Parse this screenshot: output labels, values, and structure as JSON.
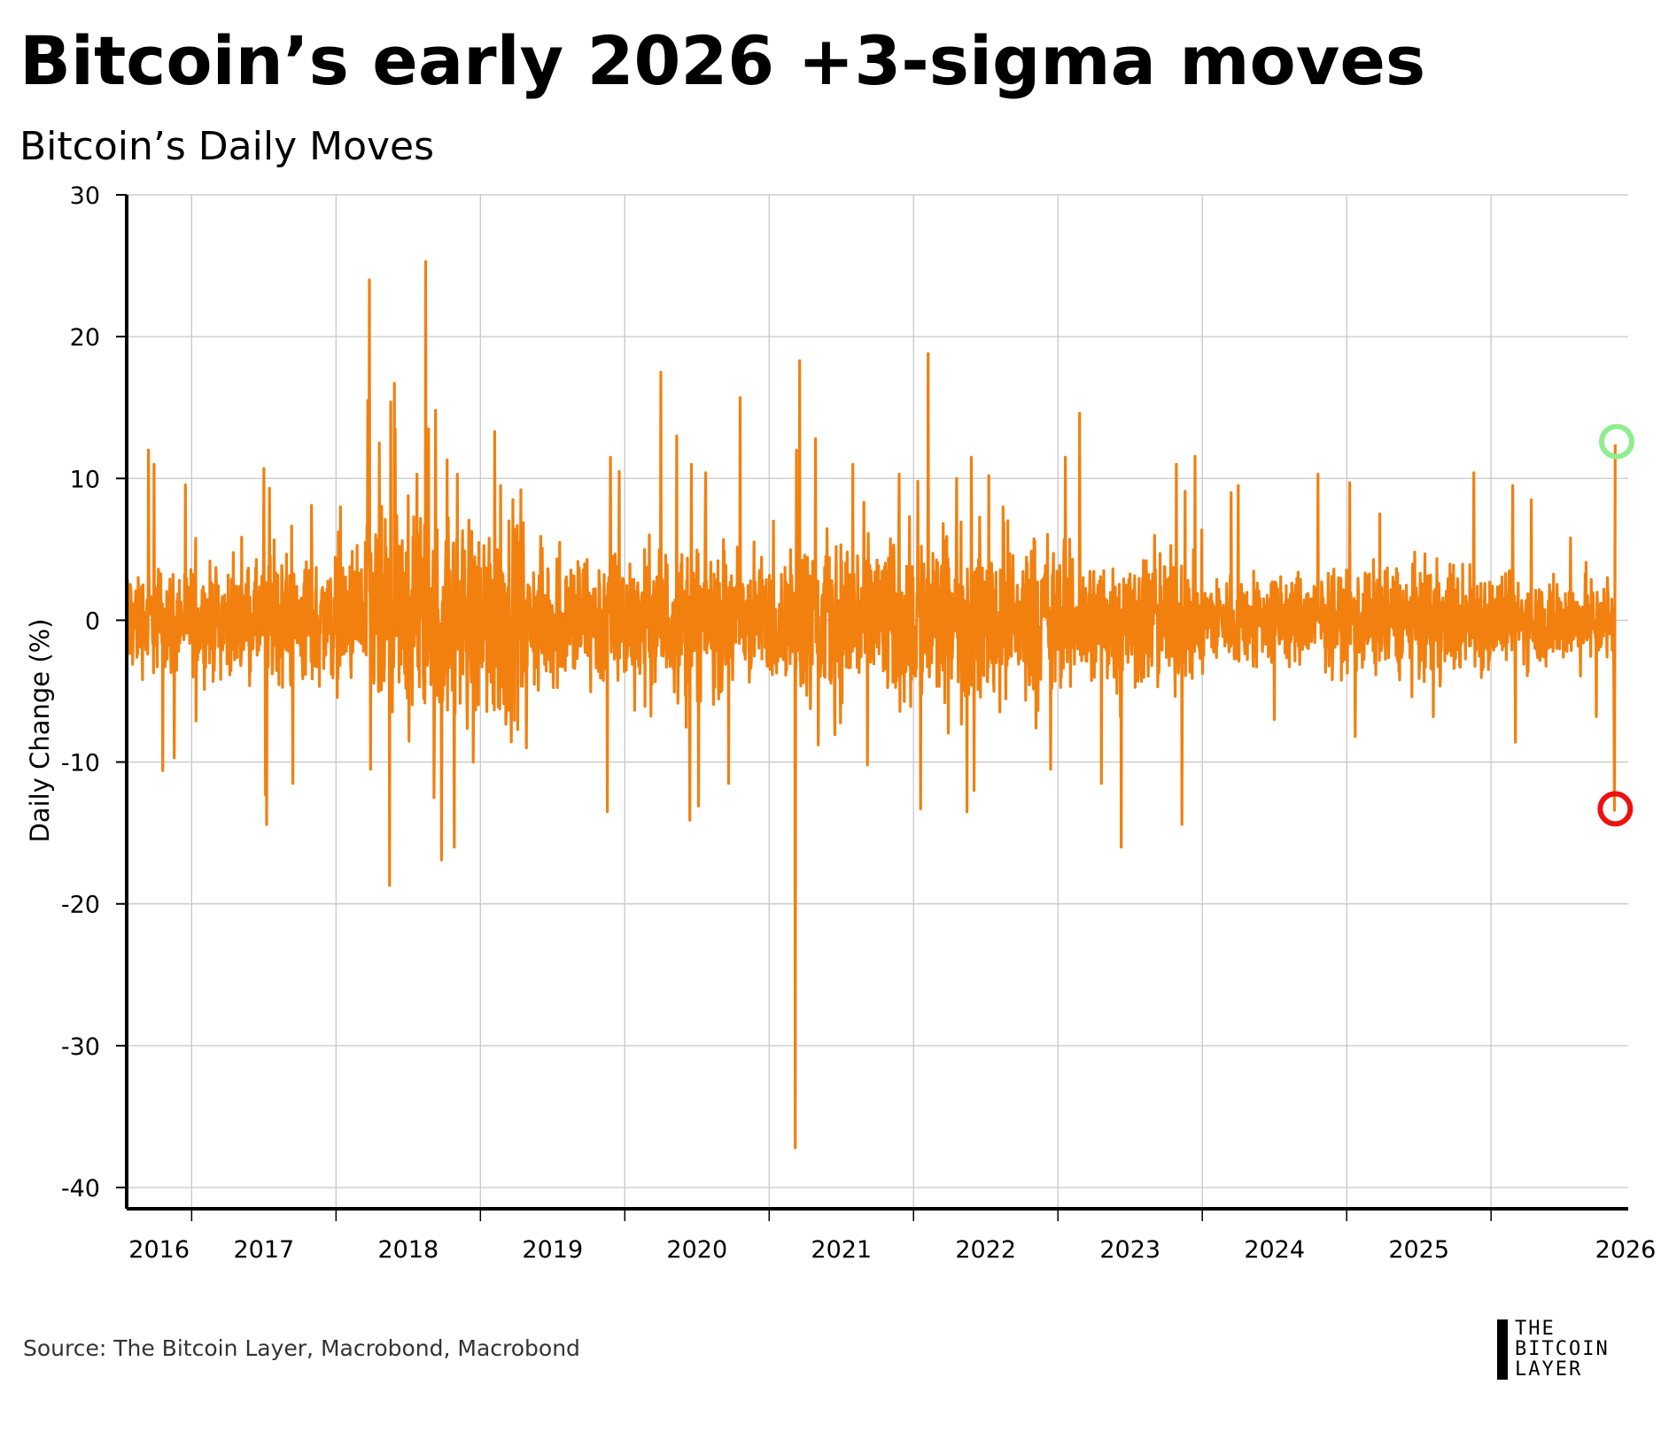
{
  "header": {
    "title": "Bitcoin’s early 2026 +3-sigma moves",
    "subtitle": "Bitcoin’s Daily Moves"
  },
  "footer": {
    "source": "Source: The Bitcoin Layer, Macrobond, Macrobond",
    "logo_lines": [
      "THE",
      "BITCOIN",
      "LAYER"
    ]
  },
  "colors": {
    "series": "#F2800F",
    "grid": "#C8C8C8",
    "axis": "#000000",
    "marker_up": "#90EE90",
    "marker_down": "#EE1111"
  },
  "chart_data": {
    "type": "line",
    "title": "Bitcoin’s Daily Moves",
    "xlabel": "",
    "ylabel": "Daily Change (%)",
    "ylim": [
      -41.5,
      30
    ],
    "yticks": [
      30,
      20,
      10,
      0,
      -10,
      -20,
      -30,
      -40
    ],
    "xlim": [
      2015.55,
      2025.95
    ],
    "xtick_labels": [
      "2016",
      "2017",
      "2018",
      "2019",
      "2020",
      "2021",
      "2022",
      "2023",
      "2024",
      "2025",
      "2026"
    ],
    "grid": true,
    "series": [
      {
        "name": "Bitcoin daily change (%)",
        "spikes": [
          {
            "x": 2015.7,
            "y": 12.0
          },
          {
            "x": 2015.74,
            "y": 11.0
          },
          {
            "x": 2015.8,
            "y": -10.6
          },
          {
            "x": 2015.88,
            "y": -9.7
          },
          {
            "x": 2016.03,
            "y": -7.1
          },
          {
            "x": 2016.5,
            "y": 10.7
          },
          {
            "x": 2016.51,
            "y": -12.3
          },
          {
            "x": 2016.52,
            "y": -14.4
          },
          {
            "x": 2016.54,
            "y": 9.3
          },
          {
            "x": 2016.7,
            "y": -11.5
          },
          {
            "x": 2016.83,
            "y": 8.1
          },
          {
            "x": 2017.03,
            "y": 8.0
          },
          {
            "x": 2017.22,
            "y": 15.5
          },
          {
            "x": 2017.23,
            "y": 24.0
          },
          {
            "x": 2017.24,
            "y": -10.5
          },
          {
            "x": 2017.3,
            "y": 12.5
          },
          {
            "x": 2017.38,
            "y": 15.4
          },
          {
            "x": 2017.37,
            "y": -18.7
          },
          {
            "x": 2017.41,
            "y": 13.5
          },
          {
            "x": 2017.56,
            "y": 10.3
          },
          {
            "x": 2017.62,
            "y": 25.3
          },
          {
            "x": 2017.64,
            "y": 13.5
          },
          {
            "x": 2017.69,
            "y": 14.8
          },
          {
            "x": 2017.68,
            "y": -12.5
          },
          {
            "x": 2017.73,
            "y": -16.9
          },
          {
            "x": 2017.77,
            "y": 11.3
          },
          {
            "x": 2017.82,
            "y": -16.0
          },
          {
            "x": 2017.84,
            "y": 10.3
          },
          {
            "x": 2017.95,
            "y": -10.0
          },
          {
            "x": 2018.1,
            "y": 13.3
          },
          {
            "x": 2018.14,
            "y": 9.5
          },
          {
            "x": 2018.28,
            "y": 9.2
          },
          {
            "x": 2018.32,
            "y": -9.0
          },
          {
            "x": 2018.55,
            "y": 5.5
          },
          {
            "x": 2018.88,
            "y": -13.5
          },
          {
            "x": 2018.9,
            "y": 11.5
          },
          {
            "x": 2018.96,
            "y": 10.5
          },
          {
            "x": 2019.25,
            "y": 17.5
          },
          {
            "x": 2019.36,
            "y": 13.0
          },
          {
            "x": 2019.45,
            "y": -14.1
          },
          {
            "x": 2019.46,
            "y": 11.0
          },
          {
            "x": 2019.51,
            "y": -13.1
          },
          {
            "x": 2019.56,
            "y": 10.4
          },
          {
            "x": 2019.72,
            "y": -11.5
          },
          {
            "x": 2019.8,
            "y": 15.7
          },
          {
            "x": 2020.03,
            "y": 7.0
          },
          {
            "x": 2020.18,
            "y": -37.2
          },
          {
            "x": 2020.19,
            "y": 12.0
          },
          {
            "x": 2020.21,
            "y": 18.3
          },
          {
            "x": 2020.32,
            "y": 12.8
          },
          {
            "x": 2020.34,
            "y": -8.8
          },
          {
            "x": 2020.58,
            "y": 11.0
          },
          {
            "x": 2020.68,
            "y": -10.2
          },
          {
            "x": 2020.9,
            "y": 10.3
          },
          {
            "x": 2021.03,
            "y": 9.8
          },
          {
            "x": 2021.05,
            "y": -13.3
          },
          {
            "x": 2021.1,
            "y": 18.8
          },
          {
            "x": 2021.3,
            "y": 10.0
          },
          {
            "x": 2021.37,
            "y": -13.5
          },
          {
            "x": 2021.4,
            "y": 11.5
          },
          {
            "x": 2021.42,
            "y": -12.0
          },
          {
            "x": 2021.52,
            "y": 10.2
          },
          {
            "x": 2021.62,
            "y": 8.0
          },
          {
            "x": 2021.95,
            "y": -10.5
          },
          {
            "x": 2022.05,
            "y": 11.5
          },
          {
            "x": 2022.15,
            "y": 14.6
          },
          {
            "x": 2022.3,
            "y": -11.5
          },
          {
            "x": 2022.44,
            "y": -16.0
          },
          {
            "x": 2022.82,
            "y": 11.0
          },
          {
            "x": 2022.86,
            "y": -14.4
          },
          {
            "x": 2023.2,
            "y": 9.0
          },
          {
            "x": 2023.25,
            "y": 9.5
          },
          {
            "x": 2023.5,
            "y": -7.0
          },
          {
            "x": 2023.8,
            "y": 10.3
          },
          {
            "x": 2024.02,
            "y": 9.7
          },
          {
            "x": 2024.06,
            "y": -8.2
          },
          {
            "x": 2024.23,
            "y": 7.5
          },
          {
            "x": 2024.6,
            "y": 12.3
          },
          {
            "x": 2024.6,
            "y": -6.8
          },
          {
            "x": 2024.88,
            "y": 10.4
          },
          {
            "x": 2025.15,
            "y": 9.5
          },
          {
            "x": 2025.17,
            "y": -8.6
          },
          {
            "x": 2025.28,
            "y": 8.5
          },
          {
            "x": 2025.55,
            "y": 5.8
          },
          {
            "x": 2025.73,
            "y": -6.8
          }
        ],
        "final_points": [
          {
            "x": 2025.855,
            "y": -13.4
          },
          {
            "x": 2025.86,
            "y": 12.4
          }
        ]
      }
    ],
    "annotations": [
      {
        "type": "circle-marker",
        "x": 2025.87,
        "y": 12.6,
        "color": "green",
        "meaning": "up move"
      },
      {
        "type": "circle-marker",
        "x": 2025.86,
        "y": -13.3,
        "color": "red",
        "meaning": "down move"
      }
    ]
  }
}
